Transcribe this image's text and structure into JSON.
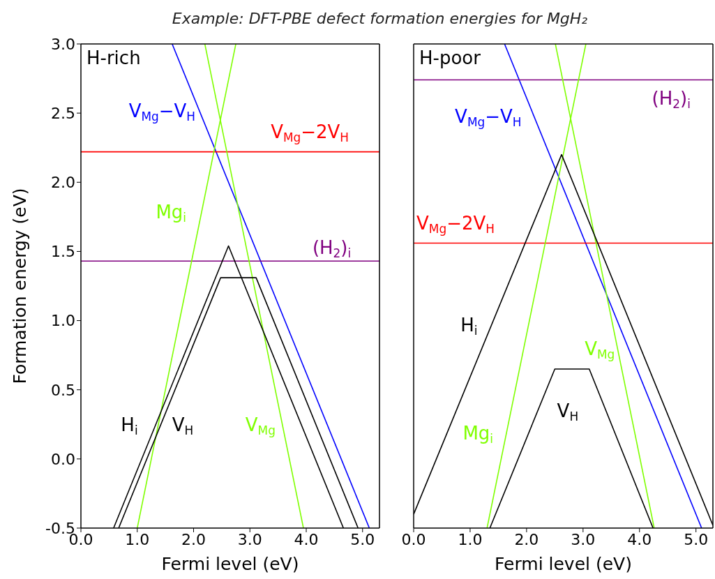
{
  "chart_data": [
    {
      "type": "line",
      "title": "Example: DFT-PBE defect formation energies for MgH₂",
      "xlabel": "Fermi level (eV)",
      "ylabel": "Formation energy (eV)",
      "annotations": [
        "H-rich"
      ],
      "line_style": "solid",
      "xlim": [
        0,
        5.3
      ],
      "ylim": [
        -0.5,
        3.0
      ],
      "xticks": [
        {
          "value": 0,
          "label": "0.0"
        },
        {
          "value": 1,
          "label": "1.0"
        },
        {
          "value": 2,
          "label": "2.0"
        },
        {
          "value": 3,
          "label": "3.0"
        },
        {
          "value": 4,
          "label": "4.0"
        },
        {
          "value": 5,
          "label": "5.0"
        }
      ],
      "yticks": [
        {
          "value": -0.5,
          "label": "-0.5"
        },
        {
          "value": 0,
          "label": "0.0"
        },
        {
          "value": 0.5,
          "label": "0.5"
        },
        {
          "value": 1,
          "label": "1.0"
        },
        {
          "value": 1.5,
          "label": "1.5"
        },
        {
          "value": 2,
          "label": "2.0"
        },
        {
          "value": 2.5,
          "label": "2.5"
        },
        {
          "value": 3,
          "label": "3.0"
        }
      ],
      "series": [
        {
          "name": "V$_{Mg}$−V$_{H}$",
          "color": "#0000ff",
          "x": [
            1.62,
            5.12
          ],
          "values": [
            3.0,
            -0.5
          ]
        },
        {
          "name": "V$_{Mg}$−2V$_{H}$",
          "color": "#ff0000",
          "x": [
            0,
            5.3
          ],
          "values": [
            2.22,
            2.22
          ]
        },
        {
          "name": "(H$_{2}$)$_{i}$",
          "color": "#800080",
          "x": [
            0,
            5.3
          ],
          "values": [
            1.43,
            1.43
          ]
        },
        {
          "name": "Mg$_{i}$",
          "color": "#7fff00",
          "x": [
            1.0,
            2.75
          ],
          "values": [
            -0.5,
            3.0
          ]
        },
        {
          "name": "V$_{Mg}$",
          "color": "#7fff00",
          "x": [
            2.2,
            3.95
          ],
          "values": [
            3.0,
            -0.5
          ]
        },
        {
          "name": "H$_{i}$",
          "color": "#000000",
          "x": [
            0.58,
            2.62,
            4.66
          ],
          "values": [
            -0.5,
            1.54,
            -0.5
          ]
        },
        {
          "name": "V$_{H}$",
          "color": "#000000",
          "x": [
            0.67,
            2.48,
            3.11,
            4.92
          ],
          "values": [
            -0.5,
            1.31,
            1.31,
            -0.5
          ]
        }
      ]
    },
    {
      "type": "line",
      "xlabel": "Fermi level (eV)",
      "annotations": [
        "H-poor"
      ],
      "line_style": "solid",
      "tick_labels": "x",
      "xlim": [
        0,
        5.3
      ],
      "ylim": [
        -0.5,
        3.0
      ],
      "xticks": [
        {
          "value": 0,
          "label": "0.0"
        },
        {
          "value": 1,
          "label": "1.0"
        },
        {
          "value": 2,
          "label": "2.0"
        },
        {
          "value": 3,
          "label": "3.0"
        },
        {
          "value": 4,
          "label": "4.0"
        },
        {
          "value": 5,
          "label": "5.0"
        }
      ],
      "yticks": [
        {
          "value": -0.5,
          "label": null
        },
        {
          "value": 0,
          "label": null
        },
        {
          "value": 0.5,
          "label": null
        },
        {
          "value": 1,
          "label": null
        },
        {
          "value": 1.5,
          "label": null
        },
        {
          "value": 2,
          "label": null
        },
        {
          "value": 2.5,
          "label": null
        },
        {
          "value": 3,
          "label": null
        }
      ],
      "series": [
        {
          "name": "V$_{Mg}$−V$_{H}$",
          "color": "#0000ff",
          "x": [
            1.61,
            5.1
          ],
          "values": [
            3.0,
            -0.5
          ]
        },
        {
          "name": "V$_{Mg}$−2V$_{H}$",
          "color": "#ff0000",
          "x": [
            0,
            5.3
          ],
          "values": [
            1.56,
            1.56
          ]
        },
        {
          "name": "(H$_{2}$)$_{i}$",
          "color": "#800080",
          "x": [
            0,
            5.3
          ],
          "values": [
            2.74,
            2.74
          ]
        },
        {
          "name": "Mg$_{i}$",
          "color": "#7fff00",
          "x": [
            1.3,
            3.05
          ],
          "values": [
            -0.5,
            3.0
          ]
        },
        {
          "name": "V$_{Mg}$",
          "color": "#7fff00",
          "x": [
            2.51,
            4.26
          ],
          "values": [
            3.0,
            -0.5
          ]
        },
        {
          "name": "H$_{i}$",
          "color": "#000000",
          "x": [
            0,
            2.62,
            5.3
          ],
          "values": [
            -0.4,
            2.2,
            -0.48
          ]
        },
        {
          "name": "V$_{H}$",
          "color": "#000000",
          "x": [
            1.35,
            2.5,
            3.11,
            4.24
          ],
          "values": [
            -0.5,
            0.65,
            0.65,
            -0.5
          ]
        }
      ]
    }
  ]
}
